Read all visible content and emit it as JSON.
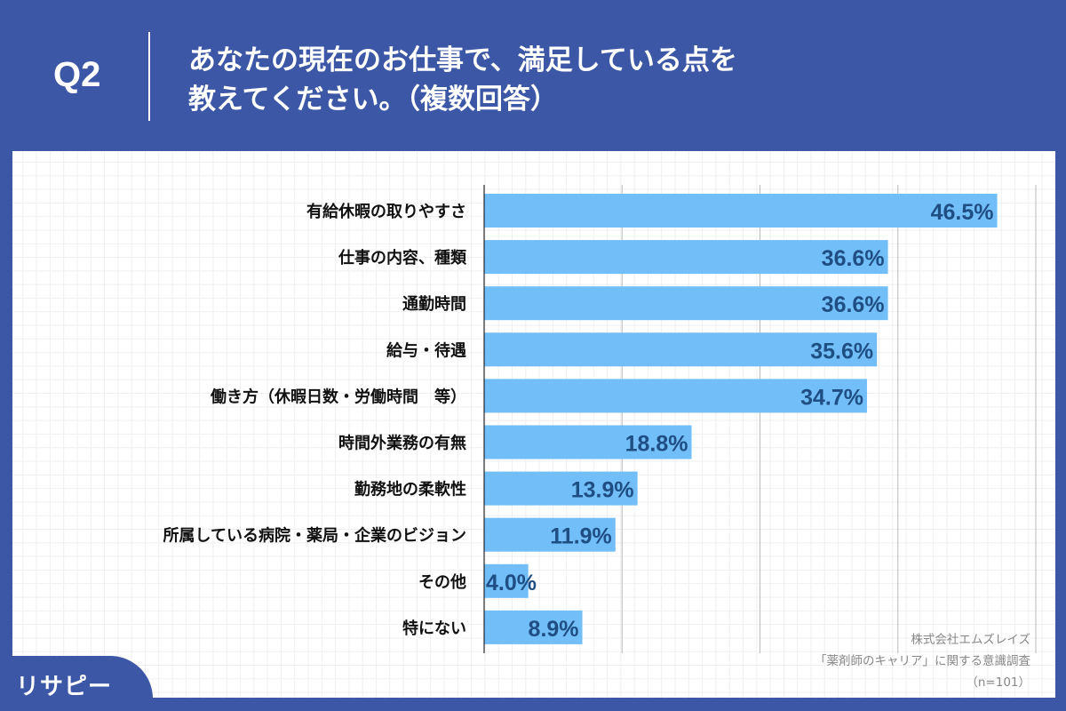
{
  "header": {
    "q": "Q2",
    "title_line1": "あなたの現在のお仕事で、満足している点を",
    "title_line2": "教えてください。（複数回答）"
  },
  "source": {
    "line1": "株式会社エムズレイズ",
    "line2": "「薬剤師のキャリア」に関する意識調査",
    "line3": "（n=101）"
  },
  "logo": {
    "text": "リサピー"
  },
  "colors": {
    "background": "#3c57a5",
    "bar": "#72bef8",
    "label": "#1f4e84"
  },
  "chart_data": {
    "type": "bar",
    "orientation": "horizontal",
    "categories": [
      "有給休暇の取りやすさ",
      "仕事の内容、種類",
      "通勤時間",
      "給与・待遇",
      "働き方（休暇日数・労働時間　等）",
      "時間外業務の有無",
      "勤務地の柔軟性",
      "所属している病院・薬局・企業のビジョン",
      "その他",
      "特にない"
    ],
    "values": [
      46.5,
      36.6,
      36.6,
      35.6,
      34.7,
      18.8,
      13.9,
      11.9,
      4.0,
      8.9
    ],
    "value_labels": [
      "46.5%",
      "36.6%",
      "36.6%",
      "35.6%",
      "34.7%",
      "18.8%",
      "13.9%",
      "11.9%",
      "4.0%",
      "8.9%"
    ],
    "xlim": [
      0,
      50
    ],
    "grid_interval": 12.5,
    "grid": true
  }
}
